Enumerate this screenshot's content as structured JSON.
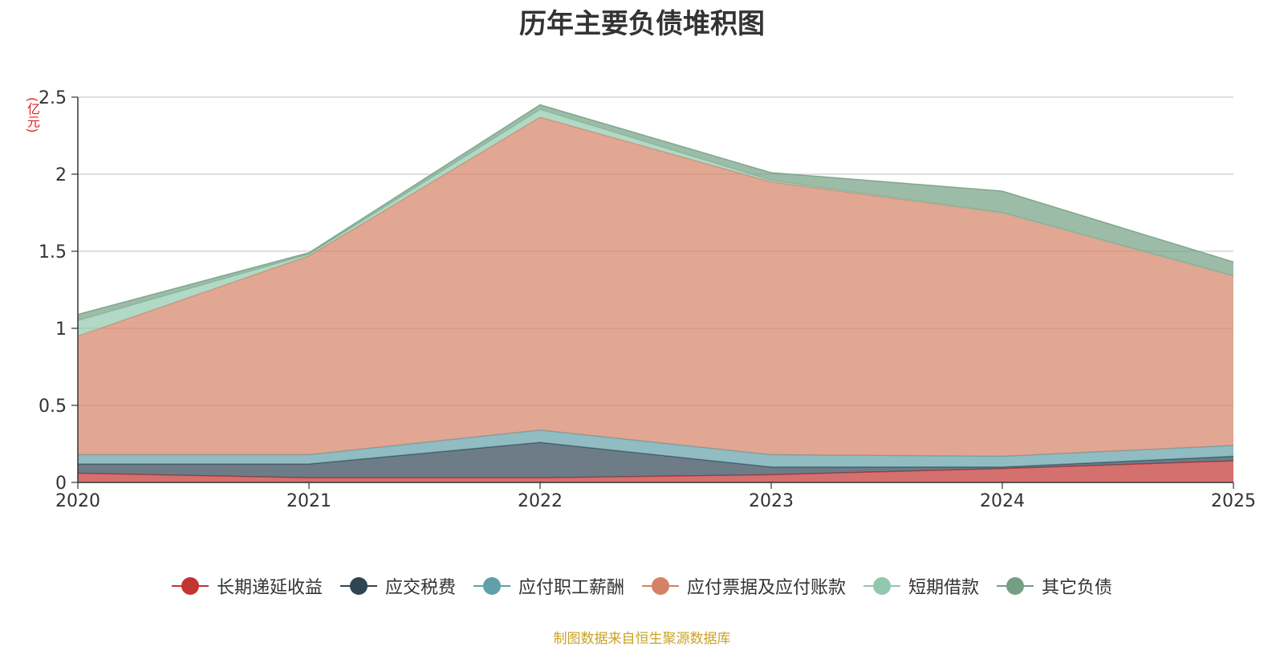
{
  "title": "历年主要负债堆积图",
  "unit_label": "(亿元)",
  "source_note": "制图数据来自恒生聚源数据库",
  "chart_data": {
    "type": "area",
    "stacked": true,
    "x": [
      "2020",
      "2021",
      "2022",
      "2023",
      "2024",
      "2025"
    ],
    "ylim": [
      0,
      2.5
    ],
    "yticks": [
      "0",
      "0.5",
      "1",
      "1.5",
      "2",
      "2.5"
    ],
    "grid": true,
    "legend_position": "bottom",
    "series": [
      {
        "name": "长期递延收益",
        "color": "#c23531",
        "values": [
          0.06,
          0.03,
          0.03,
          0.05,
          0.09,
          0.14
        ]
      },
      {
        "name": "应交税费",
        "color": "#2f4554",
        "values": [
          0.06,
          0.09,
          0.23,
          0.05,
          0.01,
          0.03
        ]
      },
      {
        "name": "应付职工薪酬",
        "color": "#61a0a8",
        "values": [
          0.06,
          0.06,
          0.08,
          0.08,
          0.07,
          0.07
        ]
      },
      {
        "name": "应付票据及应付账款",
        "color": "#d48265",
        "values": [
          0.77,
          1.29,
          2.03,
          1.77,
          1.58,
          1.1
        ]
      },
      {
        "name": "短期借款",
        "color": "#91c7ae",
        "values": [
          0.1,
          0.01,
          0.05,
          0.01,
          0.0,
          0.0
        ]
      },
      {
        "name": "其它负债",
        "color": "#749f83",
        "values": [
          0.04,
          0.01,
          0.03,
          0.05,
          0.14,
          0.09
        ]
      }
    ]
  }
}
